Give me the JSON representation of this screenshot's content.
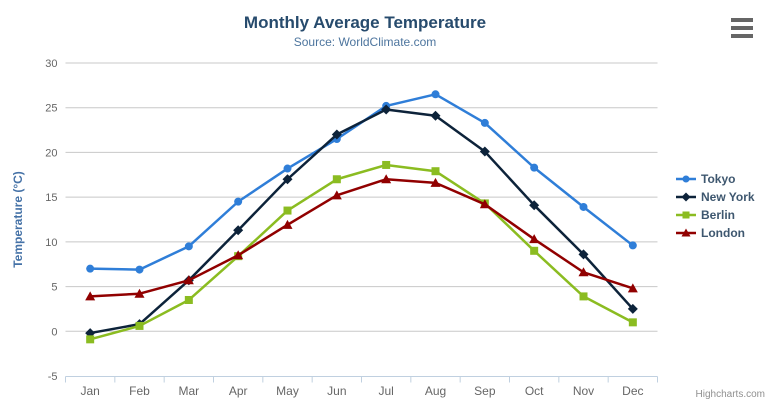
{
  "credits": {
    "text": "Highcharts.com"
  },
  "export_menu": {
    "icon": "hamburger-icon"
  },
  "colors": {
    "title": "#274b6d",
    "subtitle": "#4d759e",
    "axis_labels": "#666666",
    "yaxis_title": "#4572a7",
    "gridline": "#c8c8c8",
    "axis_line": "#c0d0e0",
    "legend_text": "#3e576f",
    "background": "#ffffff"
  },
  "chart_data": {
    "type": "line",
    "title": "Monthly Average Temperature",
    "subtitle": "Source: WorldClimate.com",
    "xlabel": "",
    "ylabel": "Temperature (°C)",
    "categories": [
      "Jan",
      "Feb",
      "Mar",
      "Apr",
      "May",
      "Jun",
      "Jul",
      "Aug",
      "Sep",
      "Oct",
      "Nov",
      "Dec"
    ],
    "ylim": [
      -5,
      30
    ],
    "yticks": [
      -5,
      0,
      5,
      10,
      15,
      20,
      25,
      30
    ],
    "grid": true,
    "legend_position": "right",
    "series": [
      {
        "name": "Tokyo",
        "color": "#2f7ed8",
        "symbol": "circle",
        "values": [
          7.0,
          6.9,
          9.5,
          14.5,
          18.2,
          21.5,
          25.2,
          26.5,
          23.3,
          18.3,
          13.9,
          9.6
        ]
      },
      {
        "name": "New York",
        "color": "#0d233a",
        "symbol": "diamond",
        "values": [
          -0.2,
          0.8,
          5.7,
          11.3,
          17.0,
          22.0,
          24.8,
          24.1,
          20.1,
          14.1,
          8.6,
          2.5
        ]
      },
      {
        "name": "Berlin",
        "color": "#8bbc21",
        "symbol": "square",
        "values": [
          -0.9,
          0.6,
          3.5,
          8.4,
          13.5,
          17.0,
          18.6,
          17.9,
          14.3,
          9.0,
          3.9,
          1.0
        ]
      },
      {
        "name": "London",
        "color": "#910000",
        "symbol": "triangle",
        "values": [
          3.9,
          4.2,
          5.7,
          8.5,
          11.9,
          15.2,
          17.0,
          16.6,
          14.2,
          10.3,
          6.6,
          4.8
        ]
      }
    ]
  }
}
